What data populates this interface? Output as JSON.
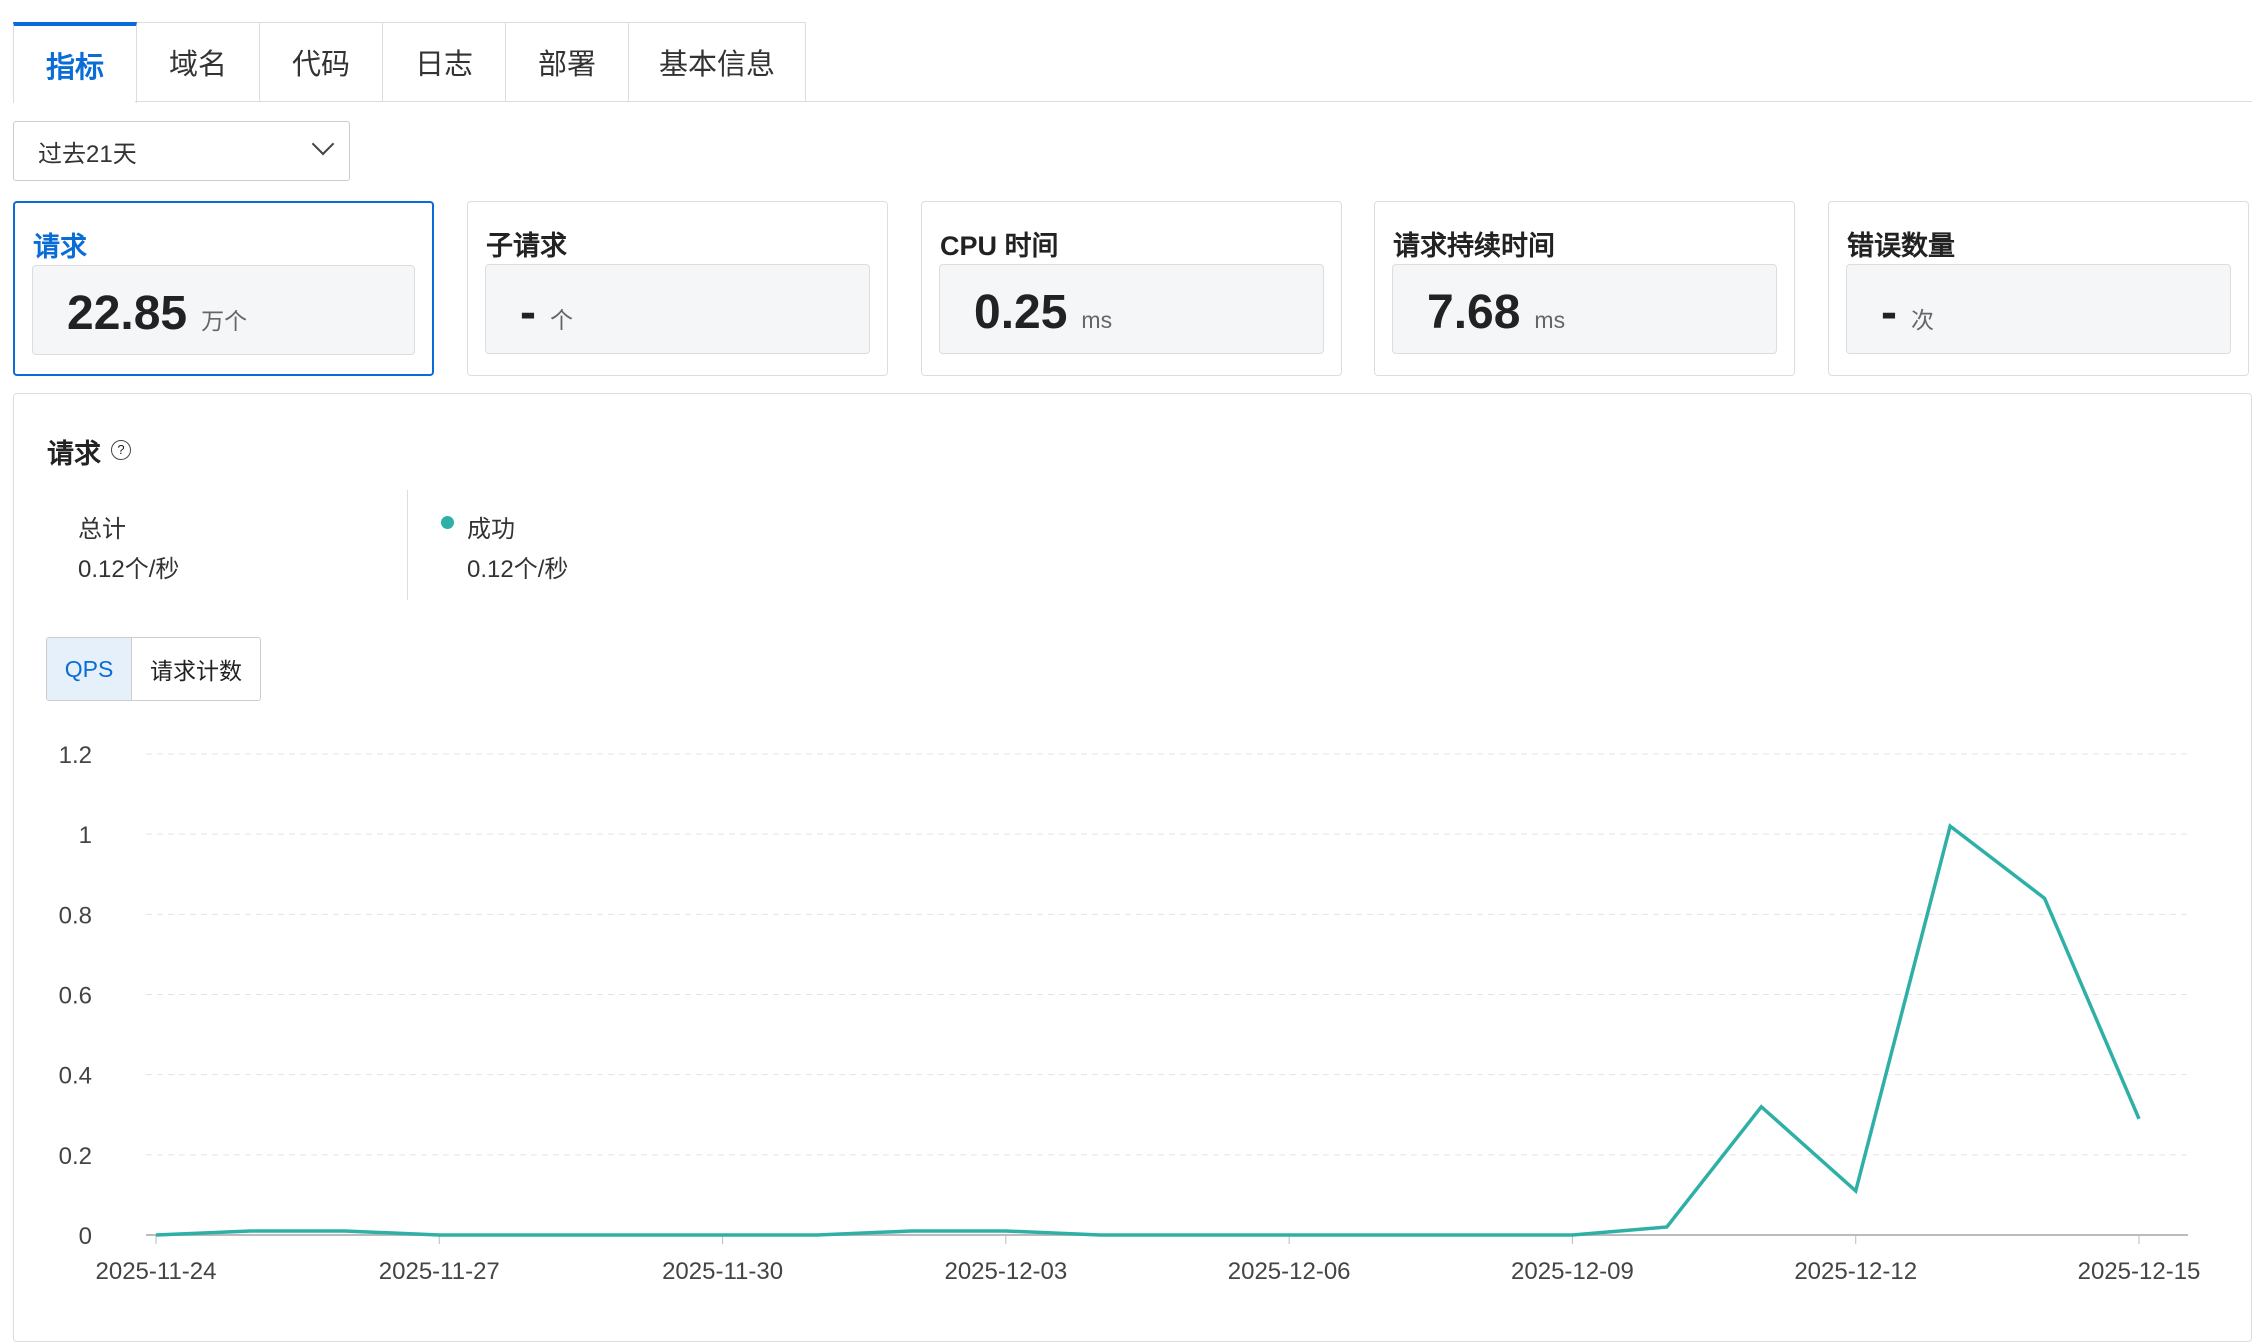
{
  "tabs": [
    "指标",
    "域名",
    "代码",
    "日志",
    "部署",
    "基本信息"
  ],
  "time_range": "过去21天",
  "cards": [
    {
      "title": "请求",
      "value": "22.85",
      "unit": "万个"
    },
    {
      "title": "子请求",
      "value": "-",
      "unit": "个"
    },
    {
      "title": "CPU 时间",
      "value": "0.25",
      "unit": "ms"
    },
    {
      "title": "请求持续时间",
      "value": "7.68",
      "unit": "ms"
    },
    {
      "title": "错误数量",
      "value": "-",
      "unit": "次"
    }
  ],
  "panel": {
    "title": "请求",
    "help_icon": "question-circle-icon",
    "total_label": "总计",
    "total_value": "0.12个/秒",
    "success_label": "成功",
    "success_value": "0.12个/秒",
    "toggle": [
      "QPS",
      "请求计数"
    ]
  },
  "colors": {
    "accent": "#0a6cd6",
    "series": "#2fb0a6"
  },
  "chart_data": {
    "type": "line",
    "ylim": [
      0,
      1.2
    ],
    "yticks": [
      "0",
      "0.2",
      "0.4",
      "0.6",
      "0.8",
      "1",
      "1.2"
    ],
    "xticks": [
      "2025-11-24",
      "2025-11-27",
      "2025-11-30",
      "2025-12-03",
      "2025-12-06",
      "2025-12-09",
      "2025-12-12",
      "2025-12-15"
    ],
    "grid": true,
    "x": [
      "2025-11-24",
      "2025-11-25",
      "2025-11-26",
      "2025-11-27",
      "2025-11-28",
      "2025-11-29",
      "2025-11-30",
      "2025-12-01",
      "2025-12-02",
      "2025-12-03",
      "2025-12-04",
      "2025-12-05",
      "2025-12-06",
      "2025-12-07",
      "2025-12-08",
      "2025-12-09",
      "2025-12-10",
      "2025-12-11",
      "2025-12-12",
      "2025-12-13",
      "2025-12-14",
      "2025-12-15"
    ],
    "series": [
      {
        "values": [
          0,
          0.01,
          0.01,
          0,
          0,
          0,
          0,
          0,
          0.01,
          0.01,
          0,
          0,
          0,
          0,
          0,
          0,
          0.02,
          0.32,
          0.11,
          1.02,
          0.84,
          0.29
        ]
      }
    ]
  }
}
